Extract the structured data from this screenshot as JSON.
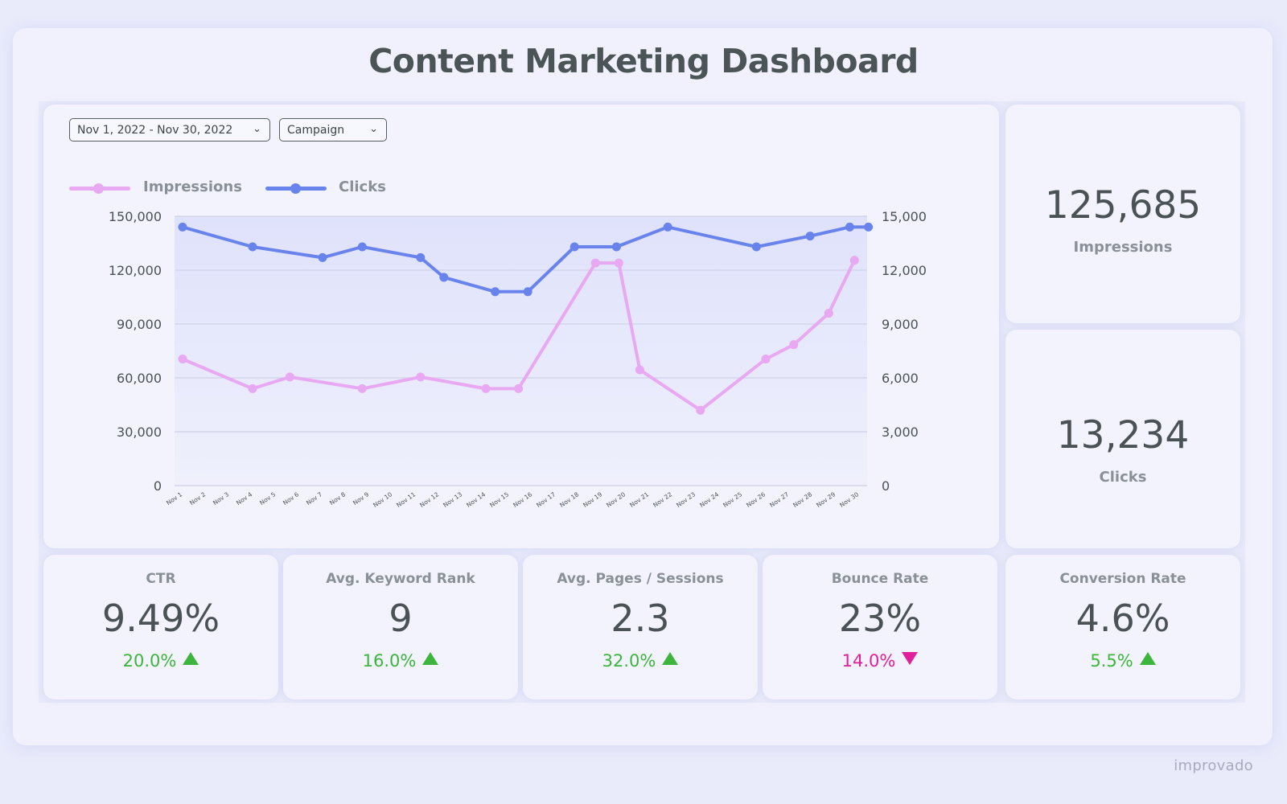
{
  "title": "Content Marketing Dashboard",
  "filters": {
    "date_range": "Nov 1, 2022 - Nov 30, 2022",
    "campaign": "Campaign"
  },
  "legend": {
    "impressions": "Impressions",
    "clicks": "Clicks"
  },
  "colors": {
    "impressions": "#e8a8f2",
    "clicks": "#6883ec",
    "up": "#3db53d",
    "down": "#e21f9a"
  },
  "kpis": {
    "impressions": {
      "value": "125,685",
      "label": "Impressions"
    },
    "clicks": {
      "value": "13,234",
      "label": "Clicks"
    }
  },
  "metrics": [
    {
      "label": "CTR",
      "value": "9.49%",
      "change": "20.0%",
      "direction": "up"
    },
    {
      "label": "Avg. Keyword Rank",
      "value": "9",
      "change": "16.0%",
      "direction": "up"
    },
    {
      "label": "Avg. Pages / Sessions",
      "value": "2.3",
      "change": "32.0%",
      "direction": "up"
    },
    {
      "label": "Bounce Rate",
      "value": "23%",
      "change": "14.0%",
      "direction": "down"
    },
    {
      "label": "Conversion Rate",
      "value": "4.6%",
      "change": "5.5%",
      "direction": "up"
    }
  ],
  "brand": "improvado",
  "chart_data": {
    "type": "line",
    "categories": [
      "Nov 1",
      "Nov 2",
      "Nov 3",
      "Nov 4",
      "Nov 5",
      "Nov 6",
      "Nov 7",
      "Nov 8",
      "Nov 9",
      "Nov 10",
      "Nov 11",
      "Nov 12",
      "Nov 13",
      "Nov 14",
      "Nov 15",
      "Nov 16",
      "Nov 17",
      "Nov 18",
      "Nov 19",
      "Nov 20",
      "Nov 21",
      "Nov 22",
      "Nov 23",
      "Nov 24",
      "Nov 25",
      "Nov 26",
      "Nov 27",
      "Nov 28",
      "Nov 29",
      "Nov 30"
    ],
    "y_left": {
      "label": "Impressions",
      "range": [
        0,
        150000
      ],
      "ticks": [
        "0",
        "30,000",
        "60,000",
        "90,000",
        "120,000",
        "150,000"
      ]
    },
    "y_right": {
      "label": "Clicks",
      "range": [
        0,
        15000
      ],
      "ticks": [
        "0",
        "3,000",
        "6,000",
        "9,000",
        "12,000",
        "15,000"
      ]
    },
    "series": [
      {
        "name": "Impressions",
        "axis": "left",
        "points": [
          [
            0,
            70500
          ],
          [
            3,
            54000
          ],
          [
            4.6,
            60500
          ],
          [
            7.7,
            54000
          ],
          [
            10.2,
            60500
          ],
          [
            13,
            54000
          ],
          [
            14.4,
            54000
          ],
          [
            17.7,
            124000
          ],
          [
            18.7,
            124000
          ],
          [
            19.6,
            64500
          ],
          [
            22.2,
            42000
          ],
          [
            25,
            70500
          ],
          [
            26.2,
            78500
          ],
          [
            27.7,
            96000
          ],
          [
            28.8,
            125500
          ]
        ]
      },
      {
        "name": "Clicks",
        "axis": "right",
        "points": [
          [
            0,
            14400
          ],
          [
            3,
            13300
          ],
          [
            6,
            12700
          ],
          [
            7.7,
            13300
          ],
          [
            10.2,
            12700
          ],
          [
            11.2,
            11600
          ],
          [
            13.4,
            10800
          ],
          [
            14.8,
            10800
          ],
          [
            16.8,
            13300
          ],
          [
            18.6,
            13300
          ],
          [
            20.8,
            14400
          ],
          [
            24.6,
            13300
          ],
          [
            26.9,
            13900
          ],
          [
            28.6,
            14400
          ],
          [
            29.4,
            14400
          ]
        ]
      }
    ]
  }
}
